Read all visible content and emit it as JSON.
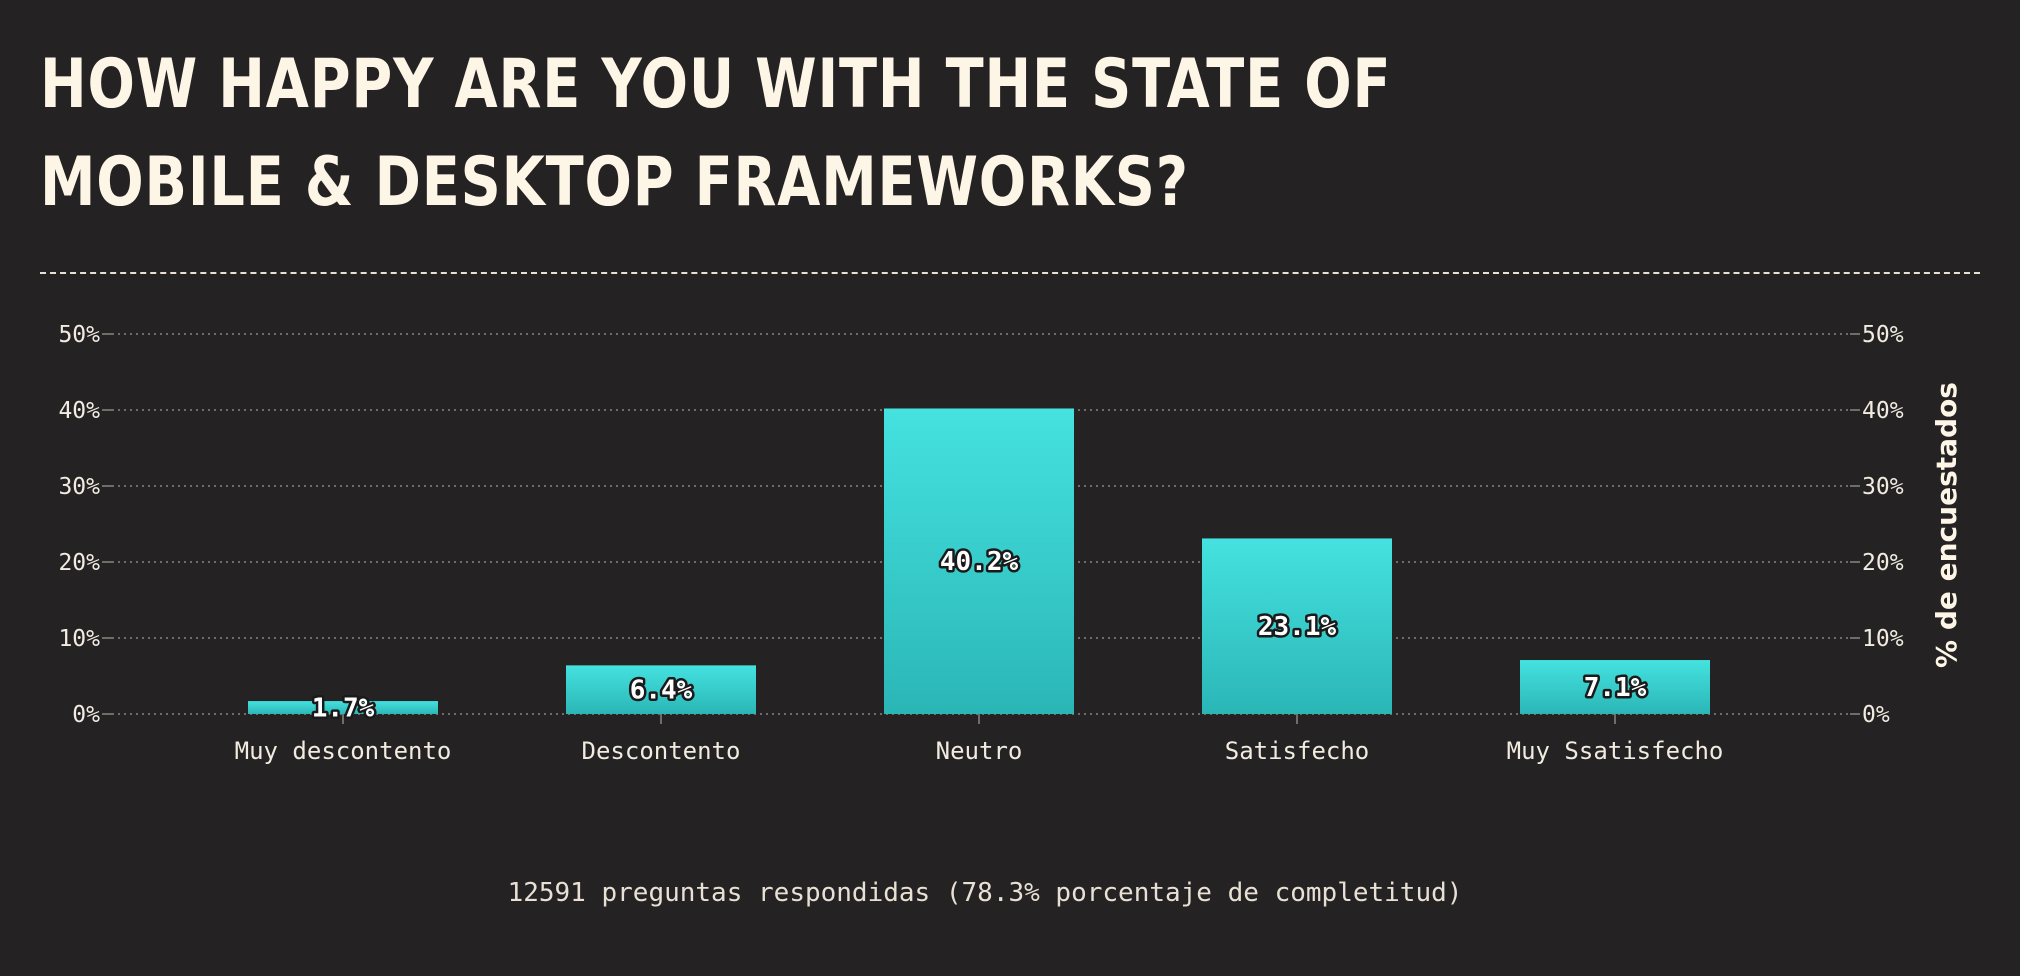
{
  "title": "HOW HAPPY ARE YOU WITH THE STATE OF MOBILE & DESKTOP FRAMEWORKS?",
  "footer": "12591 preguntas respondidas (78.3% porcentaje de completitud)",
  "colors": {
    "background": "#252224",
    "bar_top": "#44e2e0",
    "bar_bottom": "#2bb6b6",
    "text": "#fdf5e6",
    "grid": "#8a8680"
  },
  "chart_data": {
    "type": "bar",
    "categories": [
      "Muy descontento",
      "Descontento",
      "Neutro",
      "Satisfecho",
      "Muy Ssatisfecho"
    ],
    "values": [
      1.7,
      6.4,
      40.2,
      23.1,
      7.1
    ],
    "value_labels": [
      "1.7%",
      "6.4%",
      "40.2%",
      "23.1%",
      "7.1%"
    ],
    "ylabel": "% de encuestados",
    "ylim": [
      0,
      50
    ],
    "yticks": [
      0,
      10,
      20,
      30,
      40,
      50
    ],
    "ytick_labels": [
      "0%",
      "10%",
      "20%",
      "30%",
      "40%",
      "50%"
    ],
    "grid": true,
    "secondary_y_axis": true
  }
}
